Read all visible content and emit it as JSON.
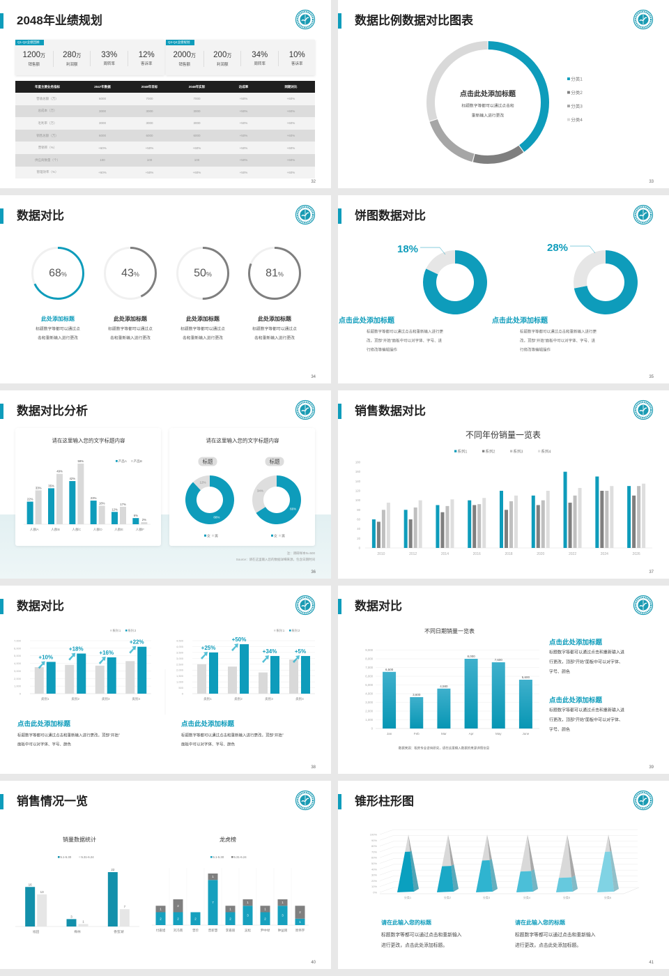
{
  "colors": {
    "teal": "#0e9cbb",
    "dark_gray": "#7f7f7f",
    "mid_gray": "#a6a6a6",
    "light_gray": "#d9d9d9",
    "title": "#222222"
  },
  "slides": [
    {
      "title": "2048年业绩规划",
      "page": "32",
      "panels": [
        {
          "tag": "Q1-Q2业绩回顾",
          "kpis": [
            {
              "value": "1200",
              "unit": "万",
              "label": "销售额"
            },
            {
              "value": "280",
              "unit": "万",
              "label": "利润额"
            },
            {
              "value": "33%",
              "unit": "",
              "label": "周转率"
            },
            {
              "value": "12%",
              "unit": "",
              "label": "客诉率"
            }
          ]
        },
        {
          "tag": "Q3-Q4业绩规划",
          "kpis": [
            {
              "value": "2000",
              "unit": "万",
              "label": "销售额"
            },
            {
              "value": "200",
              "unit": "万",
              "label": "利润额"
            },
            {
              "value": "34%",
              "unit": "",
              "label": "周转率"
            },
            {
              "value": "10%",
              "unit": "",
              "label": "客诉率"
            }
          ]
        }
      ],
      "table": {
        "headers": [
          "年度主要业务指标",
          "2047年数据",
          "2048年目标",
          "2048年实际",
          "达成率",
          "同期对比"
        ],
        "rows": [
          [
            "营收总额（万）",
            "6000",
            "7000",
            "7000",
            "+50%",
            "+60%"
          ],
          [
            "总成本（万）",
            "3000",
            "3000",
            "3000",
            "+50%",
            "+60%"
          ],
          [
            "毛利率（万）",
            "3000",
            "3000",
            "3000",
            "+50%",
            "+60%"
          ],
          [
            "销售总额（万）",
            "6000",
            "6000",
            "6000",
            "+50%",
            "+60%"
          ],
          [
            "营销率（%）",
            "+60%",
            "+50%",
            "+60%",
            "+50%",
            "+60%"
          ],
          [
            "供应商数量（个）",
            "100",
            "100",
            "100",
            "+50%",
            "+60%"
          ],
          [
            "管理效率（%）",
            "+60%",
            "+50%",
            "+60%",
            "+50%",
            "+60%"
          ]
        ]
      }
    },
    {
      "title": "数据比例数据对比图表",
      "page": "33",
      "center_title": "点击此处添加标题",
      "center_desc": [
        "标题数字等都可以通过点击和",
        "重新输入进行更改"
      ]
    },
    {
      "title": "数据对比",
      "page": "34",
      "items": [
        {
          "value": "68",
          "unit": "%",
          "title": "此处添加标题",
          "desc": [
            "标题数字等都可以通过点",
            "击和重新输入进行更改"
          ]
        },
        {
          "value": "43",
          "unit": "%",
          "title": "此处添加标题",
          "desc": [
            "标题数字等都可以通过点",
            "击和重新输入进行更改"
          ]
        },
        {
          "value": "50",
          "unit": "%",
          "title": "此处添加标题",
          "desc": [
            "标题数字等都可以通过点",
            "击和重新输入进行更改"
          ]
        },
        {
          "value": "81",
          "unit": "%",
          "title": "此处添加标题",
          "desc": [
            "标题数字等都可以通过点",
            "击和重新输入进行更改"
          ]
        }
      ]
    },
    {
      "title": "饼图数据对比",
      "page": "35",
      "items": [
        {
          "percent": "18%",
          "title": "点击此处添加标题",
          "desc": [
            "标题数字等都可以通过点击和重新输入进行更",
            "改，顶部“开始”面板中可以对字体、字号、进",
            "行修改等编辑操作"
          ]
        },
        {
          "percent": "28%",
          "title": "点击此处添加标题",
          "desc": [
            "标题数字等都可以通过点击和重新输入进行更",
            "改，顶部“开始”面板中可以对字体、字号、进",
            "行修改等编辑操作"
          ]
        }
      ]
    },
    {
      "title": "数据对比分析",
      "page": "36",
      "card_titles": [
        "请在这里输入您的文字标题内容",
        "请在这里输入您的文字标题内容"
      ],
      "note": "注：调研样本N=500",
      "source": "Source：请在这里输入您的数据详细来源，包含日期时间"
    },
    {
      "title": "销售数据对比",
      "page": "37"
    },
    {
      "title": "数据对比",
      "page": "38",
      "blocks": [
        {
          "title": "点击此处添加标题",
          "desc": [
            "标题数字等都可以通过点击和重新输入进行更改，顶部“开始”",
            "面板中可以对字体、字号、颜色"
          ]
        },
        {
          "title": "点击此处添加标题",
          "desc": [
            "标题数字等都可以通过点击和重新输入进行更改，顶部“开始”",
            "面板中可以对字体、字号、颜色"
          ]
        }
      ]
    },
    {
      "title": "数据对比",
      "page": "39",
      "source": "数据来源：相关专业咨询研究，请在这里输入数据的来源详情信息",
      "blocks": [
        {
          "title": "点击此处添加标题",
          "desc": [
            "标题数字等都可以通过点击和重新输入进",
            "行更改，顶部“开始”面板中可以对字体、",
            "字号、颜色"
          ]
        },
        {
          "title": "点击此处添加标题",
          "desc": [
            "标题数字等都可以通过点击和重新输入进",
            "行更改，顶部“开始”面板中可以对字体、",
            "字号、颜色"
          ]
        }
      ]
    },
    {
      "title": "销售情况一览",
      "page": "40"
    },
    {
      "title": "锥形柱形图",
      "page": "41",
      "blocks": [
        {
          "title": "请在此输入您的标题",
          "desc": [
            "标题数字等都可以通过点击和重新输入",
            "进行更改，点击此处添加标题。"
          ]
        },
        {
          "title": "请在此输入您的标题",
          "desc": [
            "标题数字等都可以通过点击和重新输入",
            "进行更改，点击此处添加标题。"
          ]
        }
      ]
    }
  ],
  "chart_data": [
    {
      "type": "pie",
      "categories": [
        "分类1",
        "分类2",
        "分类3",
        "分类4"
      ],
      "values": [
        40,
        14,
        16,
        30
      ],
      "colors": [
        "#0e9cbb",
        "#7f7f7f",
        "#a6a6a6",
        "#d9d9d9"
      ],
      "legend": "right"
    },
    {
      "type": "pie",
      "charts": [
        {
          "values": [
            82,
            18
          ],
          "highlight": "18%"
        },
        {
          "values": [
            72,
            28
          ],
          "highlight": "28%"
        }
      ],
      "colors": [
        "#0e9cbb",
        "#e6e6e6"
      ]
    },
    {
      "type": "bar",
      "categories": [
        "人群A",
        "人群B",
        "人群C",
        "人群D",
        "人群E",
        "人群F"
      ],
      "series": [
        {
          "name": "产品A",
          "values": [
            22,
            35,
            42,
            23,
            12,
            6
          ],
          "labels": [
            "22%",
            "35%",
            "42%",
            "23%",
            "12%",
            "6%"
          ]
        },
        {
          "name": "产品B",
          "values": [
            33,
            49,
            59,
            18,
            17,
            2
          ],
          "labels": [
            "33%",
            "49%",
            "59%",
            "18%",
            "17%",
            "2%"
          ]
        }
      ],
      "colors": [
        "#0e9cbb",
        "#d9d9d9"
      ],
      "ylim": [
        0,
        60
      ],
      "legend": "top-right",
      "title": "请在这里输入您的文字标题内容"
    },
    {
      "type": "pie",
      "charts": [
        {
          "title": "标题",
          "values": [
            88,
            12
          ],
          "labels": [
            "88%",
            "12%"
          ],
          "legend": [
            "女",
            "男"
          ]
        },
        {
          "title": "标题",
          "values": [
            66,
            34
          ],
          "labels": [
            "66%",
            "34%"
          ],
          "legend": [
            "女",
            "男"
          ]
        }
      ],
      "colors": [
        "#0e9cbb",
        "#dedede"
      ],
      "legend": "bottom"
    },
    {
      "type": "bar",
      "title": "不同年份销量一览表",
      "categories": [
        "2010",
        "2012",
        "2014",
        "2016",
        "2018",
        "2020",
        "2022",
        "2024",
        "2026"
      ],
      "series": [
        {
          "name": "系列1",
          "values": [
            60,
            80,
            90,
            100,
            120,
            110,
            160,
            150,
            130
          ]
        },
        {
          "name": "系列2",
          "values": [
            55,
            60,
            75,
            90,
            80,
            90,
            95,
            120,
            110
          ]
        },
        {
          "name": "系列3",
          "values": [
            80,
            85,
            88,
            92,
            98,
            100,
            110,
            120,
            130
          ]
        },
        {
          "name": "系列4",
          "values": [
            95,
            100,
            102,
            105,
            110,
            120,
            126,
            130,
            135
          ]
        }
      ],
      "colors": [
        "#0e9cbb",
        "#7f7f7f",
        "#bfbfbf",
        "#dedede"
      ],
      "ylim": [
        0,
        180
      ],
      "yticks": [
        "0",
        "20",
        "40",
        "60",
        "80",
        "100",
        "120",
        "140",
        "160",
        "180"
      ],
      "legend": "top",
      "grid": false
    },
    {
      "type": "bar",
      "categories": [
        "类别1",
        "类别2",
        "类别3",
        "类别4"
      ],
      "series": [
        {
          "name": "系列 1",
          "values": [
            3500,
            3800,
            3700,
            4300
          ]
        },
        {
          "name": "系列 2",
          "values": [
            4200,
            5300,
            4800,
            6200
          ]
        }
      ],
      "annotations": [
        "+10%",
        "+18%",
        "+16%",
        "+22%"
      ],
      "colors": [
        "#d9d9d9",
        "#0e9cbb"
      ],
      "ylim": [
        0,
        7000
      ],
      "yticks": [
        "0",
        "1,000",
        "2,000",
        "3,000",
        "4,000",
        "5,000",
        "6,000",
        "7,000"
      ],
      "legend": "top-right",
      "grid": true
    },
    {
      "type": "bar",
      "categories": [
        "类别1",
        "类别2",
        "类别3",
        "类别4"
      ],
      "series": [
        {
          "name": "系列 1",
          "values": [
            2500,
            2300,
            1800,
            2900
          ]
        },
        {
          "name": "系列 2",
          "values": [
            3500,
            4200,
            3200,
            3200
          ]
        }
      ],
      "annotations": [
        "+25%",
        "+50%",
        "+34%",
        "+5%"
      ],
      "colors": [
        "#d9d9d9",
        "#0e9cbb"
      ],
      "ylim": [
        0,
        4500
      ],
      "yticks": [
        "0",
        "500",
        "1,000",
        "1,500",
        "2,000",
        "2,500",
        "3,000",
        "3,500",
        "4,000",
        "4,500"
      ],
      "legend": "top-right",
      "grid": true
    },
    {
      "type": "bar",
      "title": "不同日期销量一览表",
      "categories": [
        "Jan",
        "Feb",
        "Mar",
        "Apr",
        "May",
        "June"
      ],
      "series": [
        {
          "values": [
            6500,
            3600,
            4580,
            8000,
            7600,
            5600
          ],
          "labels": [
            "6,500",
            "3,600",
            "4,580",
            "8,000",
            "7,600",
            "5,600"
          ]
        }
      ],
      "colors": [
        "#0e9cbb"
      ],
      "ylim": [
        0,
        9000
      ],
      "yticks": [
        "0",
        "1,000",
        "2,000",
        "3,000",
        "4,000",
        "5,000",
        "6,000",
        "7,000",
        "8,000",
        "9,000"
      ],
      "grid": true
    },
    {
      "type": "bar",
      "title": "销量数据统计",
      "categories": [
        "福田",
        "梅林",
        "香蜜湖"
      ],
      "series": [
        {
          "name": "5.1-5.30",
          "values": [
            16,
            3,
            22
          ],
          "labels": [
            "16",
            "3",
            "22"
          ]
        },
        {
          "name": "5.31-6.24",
          "values": [
            13,
            1,
            7
          ],
          "labels": [
            "13",
            "1",
            "7"
          ]
        }
      ],
      "colors": [
        "#1390ab",
        "#e6e6e6"
      ],
      "ylim": [
        0,
        22
      ],
      "legend": "top"
    },
    {
      "type": "bar",
      "stacked": true,
      "title": "龙虎榜",
      "categories": [
        "付嘉旭",
        "刘冯南",
        "曾珍",
        "曾新慧",
        "李嘉丽",
        "吴松",
        "尹中绿",
        "钟益刚",
        "周伟宇"
      ],
      "series": [
        {
          "name": "5.1-5.30",
          "values": [
            2,
            2,
            2,
            7,
            2,
            3,
            2,
            3,
            1
          ],
          "labels": [
            "2",
            "2",
            "2",
            "7",
            "2",
            "3",
            "2",
            "3",
            "1"
          ]
        },
        {
          "name": "5.31-6.24",
          "values": [
            1,
            2,
            0,
            1,
            1,
            1,
            1,
            1,
            2
          ],
          "labels": [
            "1",
            "2",
            "0",
            "1",
            "1",
            "1",
            "1",
            "1",
            "2"
          ]
        }
      ],
      "colors": [
        "#16a0be",
        "#7f7f7f"
      ],
      "ylim": [
        0,
        8
      ],
      "legend": "top"
    },
    {
      "type": "bar",
      "shape": "pyramid",
      "categories": [
        "分类1",
        "分类2",
        "分类3",
        "分类4",
        "分类5",
        "分类6"
      ],
      "values": [
        70,
        45,
        55,
        36,
        25,
        70
      ],
      "ylim": [
        0,
        100
      ],
      "yticks": [
        "0%",
        "10%",
        "20%",
        "30%",
        "40%",
        "50%",
        "60%",
        "70%",
        "80%",
        "90%",
        "100%"
      ],
      "colors": [
        "#0aa0bf",
        "#1aa8c6",
        "#2fb4d0",
        "#4bbfd8",
        "#66c9de",
        "#80d3e4"
      ]
    }
  ]
}
